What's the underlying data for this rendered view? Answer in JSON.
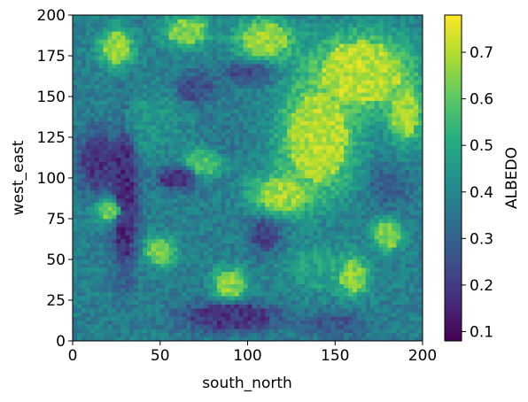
{
  "chart_data": {
    "type": "heatmap",
    "xlabel": "south_north",
    "ylabel": "west_east",
    "xlim": [
      0,
      200
    ],
    "ylim": [
      0,
      200
    ],
    "x_ticks": [
      0,
      50,
      100,
      150,
      200
    ],
    "y_ticks": [
      0,
      25,
      50,
      75,
      100,
      125,
      150,
      175,
      200
    ],
    "x_tick_labels": [
      "0",
      "50",
      "100",
      "150",
      "200"
    ],
    "y_tick_labels": [
      "0",
      "25",
      "50",
      "75",
      "100",
      "125",
      "150",
      "175",
      "200"
    ],
    "colorbar": {
      "label": "ALBEDO",
      "colormap": "viridis",
      "range": [
        0.08,
        0.78
      ],
      "ticks": [
        0.1,
        0.2,
        0.3,
        0.4,
        0.5,
        0.6,
        0.7
      ],
      "tick_labels": [
        "0.1",
        "0.2",
        "0.3",
        "0.4",
        "0.5",
        "0.6",
        "0.7"
      ]
    },
    "grid": false,
    "grid_size": [
      80,
      80
    ],
    "regions": [
      {
        "region": "bright snow field",
        "x": 140,
        "y": 125,
        "rx": 22,
        "ry": 35,
        "value": 0.75
      },
      {
        "region": "bright snow field",
        "x": 165,
        "y": 165,
        "rx": 30,
        "ry": 25,
        "value": 0.76
      },
      {
        "region": "bright snow field",
        "x": 120,
        "y": 90,
        "rx": 18,
        "ry": 14,
        "value": 0.72
      },
      {
        "region": "bright snow field",
        "x": 190,
        "y": 140,
        "rx": 10,
        "ry": 20,
        "value": 0.72
      },
      {
        "region": "bright snow field",
        "x": 110,
        "y": 185,
        "rx": 18,
        "ry": 14,
        "value": 0.7
      },
      {
        "region": "bright patch",
        "x": 25,
        "y": 180,
        "rx": 10,
        "ry": 12,
        "value": 0.72
      },
      {
        "region": "bright patch",
        "x": 65,
        "y": 190,
        "rx": 14,
        "ry": 10,
        "value": 0.68
      },
      {
        "region": "bright patch",
        "x": 22,
        "y": 80,
        "rx": 9,
        "ry": 8,
        "value": 0.68
      },
      {
        "region": "bright patch",
        "x": 50,
        "y": 55,
        "rx": 9,
        "ry": 9,
        "value": 0.68
      },
      {
        "region": "bright patch",
        "x": 90,
        "y": 35,
        "rx": 10,
        "ry": 10,
        "value": 0.7
      },
      {
        "region": "bright patch",
        "x": 160,
        "y": 40,
        "rx": 10,
        "ry": 12,
        "value": 0.7
      },
      {
        "region": "bright patch",
        "x": 180,
        "y": 65,
        "rx": 9,
        "ry": 10,
        "value": 0.68
      },
      {
        "region": "bright patch",
        "x": 75,
        "y": 110,
        "rx": 12,
        "ry": 10,
        "value": 0.6
      },
      {
        "region": "dark valley",
        "x": 30,
        "y": 90,
        "rx": 8,
        "ry": 50,
        "value": 0.12
      },
      {
        "region": "dark valley",
        "x": 15,
        "y": 110,
        "rx": 12,
        "ry": 20,
        "value": 0.15
      },
      {
        "region": "dark valley",
        "x": 60,
        "y": 100,
        "rx": 12,
        "ry": 8,
        "value": 0.15
      },
      {
        "region": "dark valley",
        "x": 90,
        "y": 15,
        "rx": 30,
        "ry": 10,
        "value": 0.15
      },
      {
        "region": "dark valley",
        "x": 110,
        "y": 65,
        "rx": 10,
        "ry": 12,
        "value": 0.2
      },
      {
        "region": "dark valley",
        "x": 150,
        "y": 10,
        "rx": 20,
        "ry": 8,
        "value": 0.25
      },
      {
        "region": "dark valley",
        "x": 70,
        "y": 155,
        "rx": 12,
        "ry": 10,
        "value": 0.22
      },
      {
        "region": "dark valley",
        "x": 100,
        "y": 165,
        "rx": 15,
        "ry": 8,
        "value": 0.22
      },
      {
        "region": "dark valley",
        "x": 180,
        "y": 95,
        "rx": 12,
        "ry": 14,
        "value": 0.28
      },
      {
        "region": "mid slope",
        "x": 45,
        "y": 135,
        "rx": 20,
        "ry": 20,
        "value": 0.45
      },
      {
        "region": "mid slope",
        "x": 85,
        "y": 125,
        "rx": 15,
        "ry": 12,
        "value": 0.35
      },
      {
        "region": "mid slope",
        "x": 140,
        "y": 45,
        "rx": 20,
        "ry": 15,
        "value": 0.5
      }
    ]
  }
}
